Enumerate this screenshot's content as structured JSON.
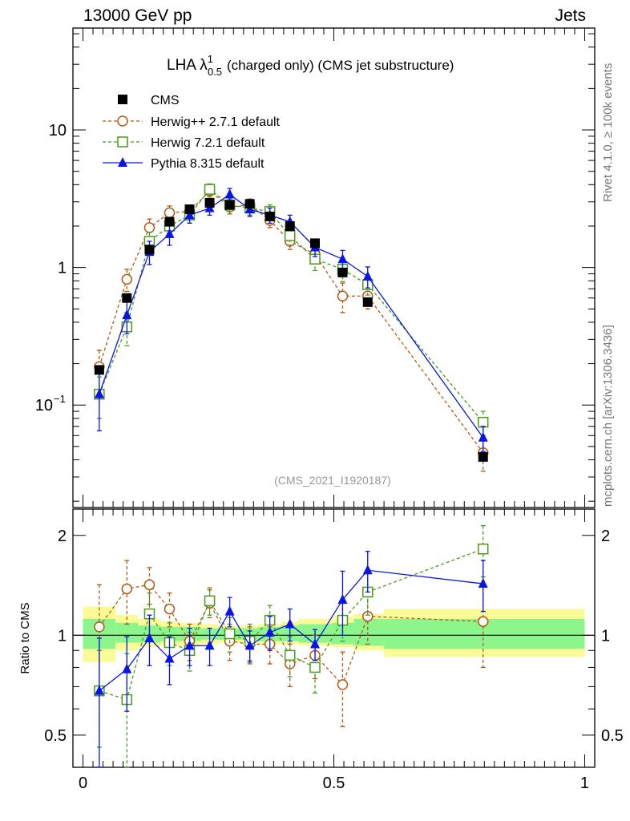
{
  "header": {
    "left": "13000 GeV pp",
    "right": "Jets",
    "side_top": "Rivet 4.1.0, ≥ 100k events",
    "side_bottom": "mcplots.cern.ch [arXiv:1306.3436]"
  },
  "chart_data": [
    {
      "type": "line",
      "title_main": "LHA λ",
      "title_sup": "1",
      "title_sub": "0.5",
      "title_rest": "(charged only) (CMS jet substructure)",
      "watermark": "(CMS_2021_I1920187)",
      "yscale": "log",
      "ylim": [
        0.018,
        55
      ],
      "xlim": [
        -0.02,
        1.02
      ],
      "ytick_labels": [
        "10",
        "1"
      ],
      "ytick_values": [
        10,
        1
      ],
      "ytick_label_base": "10",
      "ytick_label_exp": "−1",
      "ytick_label_value": 0.1,
      "legend_position": "top-left",
      "x": [
        0.0325,
        0.0875,
        0.1325,
        0.1725,
        0.2125,
        0.2525,
        0.2925,
        0.3325,
        0.3725,
        0.4125,
        0.4625,
        0.5175,
        0.5675,
        0.7975
      ],
      "series": [
        {
          "name": "CMS",
          "color": "#000000",
          "marker": "square-filled",
          "values": [
            0.18,
            0.6,
            1.35,
            2.15,
            2.65,
            2.95,
            2.85,
            2.9,
            2.35,
            2.0,
            1.5,
            0.92,
            0.56,
            0.042
          ]
        },
        {
          "name": "Herwig++ 2.7.1 default",
          "color": "#b3590f",
          "marker": "circle-open",
          "values": [
            0.19,
            0.82,
            1.95,
            2.5,
            2.55,
            3.6,
            2.75,
            2.85,
            2.2,
            1.55,
            1.25,
            0.62,
            0.62,
            0.045
          ],
          "errors": [
            0.06,
            0.15,
            0.3,
            0.3,
            0.3,
            0.35,
            0.3,
            0.3,
            0.25,
            0.2,
            0.18,
            0.15,
            0.12,
            0.012
          ]
        },
        {
          "name": "Herwig 7.2.1 default",
          "color": "#4a9a1e",
          "marker": "square-open",
          "values": [
            0.12,
            0.37,
            1.55,
            2.0,
            2.4,
            3.7,
            2.85,
            2.7,
            2.55,
            1.7,
            1.15,
            0.97,
            0.75,
            0.075
          ],
          "errors": [
            0.04,
            0.1,
            0.25,
            0.3,
            0.3,
            0.35,
            0.3,
            0.3,
            0.3,
            0.25,
            0.2,
            0.18,
            0.12,
            0.015
          ]
        },
        {
          "name": "Pythia 8.315 default",
          "color": "#0a14e6",
          "marker": "triangle-filled",
          "values": [
            0.12,
            0.45,
            1.3,
            1.75,
            2.4,
            2.7,
            3.4,
            2.65,
            2.4,
            2.15,
            1.4,
            1.15,
            0.86,
            0.058
          ],
          "errors": [
            0.055,
            0.12,
            0.25,
            0.3,
            0.3,
            0.3,
            0.35,
            0.3,
            0.3,
            0.25,
            0.2,
            0.18,
            0.15,
            0.012
          ]
        }
      ]
    },
    {
      "type": "line",
      "ylabel": "Ratio to CMS",
      "xlabel": "",
      "yscale": "log",
      "ylim": [
        0.4,
        2.4
      ],
      "xlim": [
        -0.02,
        1.02
      ],
      "ytick_labels": [
        "2",
        "1",
        "0.5"
      ],
      "ytick_values": [
        2,
        1,
        0.5
      ],
      "xtick_labels": [
        "0",
        "0.5",
        "1"
      ],
      "xtick_values": [
        0,
        0.5,
        1
      ],
      "x": [
        0.0325,
        0.0875,
        0.1325,
        0.1725,
        0.2125,
        0.2525,
        0.2925,
        0.3325,
        0.3725,
        0.4125,
        0.4625,
        0.5175,
        0.5675,
        0.7975
      ],
      "bin_edges": [
        0,
        0.065,
        0.11,
        0.155,
        0.19,
        0.235,
        0.27,
        0.315,
        0.35,
        0.395,
        0.43,
        0.495,
        0.54,
        0.6,
        1.0
      ],
      "band_stat": [
        [
          0.91,
          1.12
        ],
        [
          0.95,
          1.09
        ],
        [
          0.95,
          1.07
        ],
        [
          0.96,
          1.06
        ],
        [
          0.96,
          1.06
        ],
        [
          0.97,
          1.05
        ],
        [
          0.97,
          1.05
        ],
        [
          0.97,
          1.05
        ],
        [
          0.96,
          1.06
        ],
        [
          0.96,
          1.07
        ],
        [
          0.95,
          1.08
        ],
        [
          0.94,
          1.09
        ],
        [
          0.93,
          1.12
        ],
        [
          0.91,
          1.12
        ]
      ],
      "band_total": [
        [
          0.83,
          1.22
        ],
        [
          0.9,
          1.15
        ],
        [
          0.92,
          1.12
        ],
        [
          0.93,
          1.1
        ],
        [
          0.93,
          1.09
        ],
        [
          0.94,
          1.08
        ],
        [
          0.95,
          1.07
        ],
        [
          0.95,
          1.07
        ],
        [
          0.94,
          1.08
        ],
        [
          0.94,
          1.1
        ],
        [
          0.93,
          1.12
        ],
        [
          0.92,
          1.14
        ],
        [
          0.9,
          1.16
        ],
        [
          0.86,
          1.2
        ]
      ],
      "band_colors": {
        "stat": "#8cf58c",
        "total": "#fafa96"
      },
      "series": [
        {
          "name": "Herwig++ 2.7.1 default",
          "color": "#b3590f",
          "values": [
            1.06,
            1.38,
            1.42,
            1.2,
            0.96,
            1.25,
            0.96,
            0.94,
            0.94,
            0.82,
            0.87,
            0.71,
            1.14,
            1.1
          ],
          "errors": [
            0.36,
            0.3,
            0.18,
            0.14,
            0.12,
            0.12,
            0.12,
            0.12,
            0.12,
            0.12,
            0.13,
            0.18,
            0.2,
            0.3
          ]
        },
        {
          "name": "Herwig 7.2.1 default",
          "color": "#4a9a1e",
          "values": [
            0.68,
            0.64,
            1.16,
            0.95,
            0.9,
            1.27,
            1.01,
            0.96,
            1.11,
            0.87,
            0.8,
            1.11,
            1.35,
            1.82
          ],
          "errors": [
            0.22,
            0.24,
            0.18,
            0.14,
            0.12,
            0.12,
            0.12,
            0.12,
            0.12,
            0.12,
            0.13,
            0.15,
            0.2,
            0.32
          ]
        },
        {
          "name": "Pythia 8.315 default",
          "color": "#0a14e6",
          "values": [
            0.68,
            0.79,
            0.98,
            0.85,
            0.93,
            0.93,
            1.18,
            0.93,
            1.02,
            1.08,
            0.94,
            1.28,
            1.57,
            1.43
          ],
          "errors": [
            0.3,
            0.2,
            0.17,
            0.14,
            0.12,
            0.12,
            0.12,
            0.1,
            0.12,
            0.12,
            0.1,
            0.28,
            0.22,
            0.25
          ]
        }
      ]
    }
  ]
}
